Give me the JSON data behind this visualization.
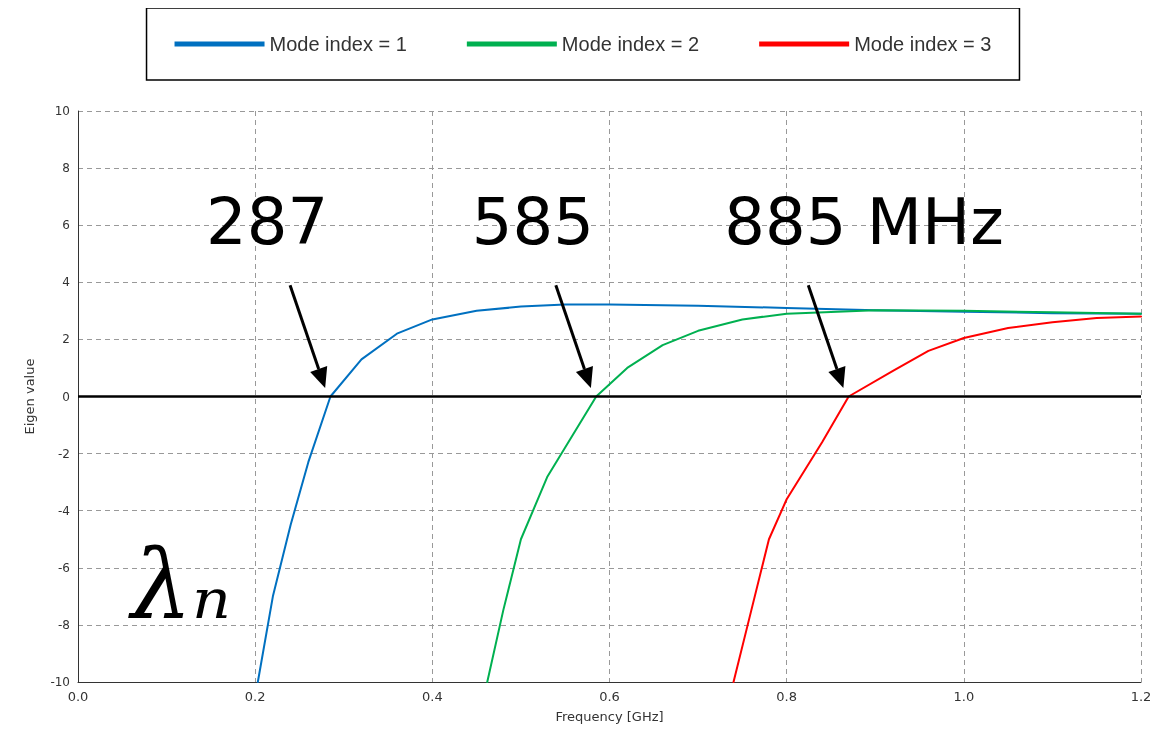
{
  "chart_data": {
    "type": "line",
    "xlabel": "Frequency [GHz]",
    "ylabel": "Eigen value",
    "xlim": [
      0,
      1.2
    ],
    "xticks": [
      {
        "value": 0,
        "label": "0.0"
      },
      {
        "value": 0.2,
        "label": "0.2"
      },
      {
        "value": 0.4,
        "label": "0.4"
      },
      {
        "value": 0.6,
        "label": "0.6"
      },
      {
        "value": 0.8,
        "label": "0.8"
      },
      {
        "value": 1.0,
        "label": "1.0"
      },
      {
        "value": 1.2,
        "label": "1.2"
      }
    ],
    "ylim": [
      -10,
      10
    ],
    "yticks": [
      -10,
      -8,
      -6,
      -4,
      -2,
      0,
      2,
      4,
      6,
      8,
      10
    ],
    "grid": true,
    "legend": "top",
    "marker": "none",
    "line_style": "solid",
    "series": [
      {
        "name": "Mode index = 1",
        "color": "#0070c0",
        "x": [
          0.203,
          0.22,
          0.24,
          0.26,
          0.285,
          0.32,
          0.36,
          0.4,
          0.45,
          0.5,
          0.55,
          0.6,
          0.7,
          0.8,
          0.9,
          1.0,
          1.1,
          1.2
        ],
        "values": [
          -10,
          -7,
          -4.5,
          -2.3,
          0,
          1.3,
          2.2,
          2.7,
          3.0,
          3.15,
          3.22,
          3.22,
          3.18,
          3.1,
          3.02,
          2.97,
          2.92,
          2.9
        ]
      },
      {
        "name": "Mode index = 2",
        "color": "#00b050",
        "x": [
          0.462,
          0.48,
          0.5,
          0.53,
          0.585,
          0.62,
          0.66,
          0.7,
          0.75,
          0.8,
          0.9,
          1.0,
          1.1,
          1.2
        ],
        "values": [
          -10,
          -7.5,
          -5,
          -2.8,
          0,
          1.0,
          1.8,
          2.3,
          2.7,
          2.9,
          3.02,
          3.0,
          2.95,
          2.9
        ]
      },
      {
        "name": "Mode index = 3",
        "color": "#ff0000",
        "x": [
          0.74,
          0.76,
          0.78,
          0.8,
          0.84,
          0.87,
          0.92,
          0.96,
          1.0,
          1.05,
          1.1,
          1.15,
          1.2
        ],
        "values": [
          -10,
          -7.5,
          -5,
          -3.6,
          -1.6,
          0,
          0.9,
          1.6,
          2.05,
          2.4,
          2.6,
          2.75,
          2.8
        ]
      }
    ],
    "ref_lines": [
      {
        "axis": "y",
        "value": 0,
        "color": "#000000"
      }
    ],
    "annotations": [
      {
        "text": "287",
        "x": 0.285,
        "y": 0
      },
      {
        "text": "585",
        "x": 0.585,
        "y": 0
      },
      {
        "text": "885 MHz",
        "x": 0.87,
        "y": 0
      },
      "λₙ"
    ]
  }
}
